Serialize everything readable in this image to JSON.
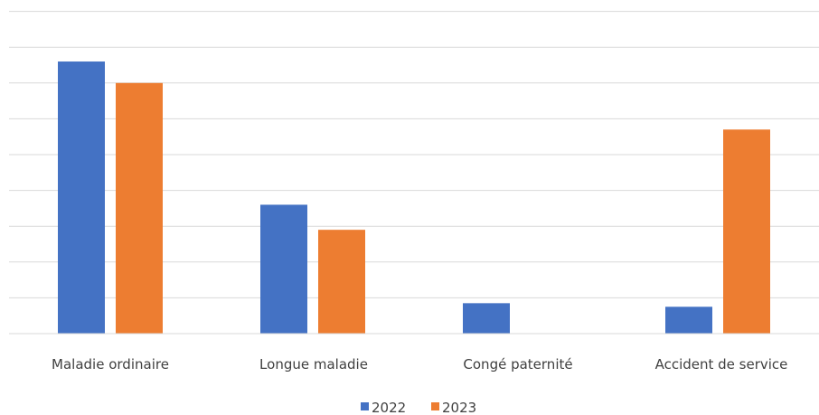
{
  "chart_data": {
    "type": "bar",
    "categories": [
      "Maladie ordinaire",
      "Longue maladie",
      "Congé paternité",
      "Accident de service"
    ],
    "series": [
      {
        "name": "2022",
        "values": [
          7.6,
          3.6,
          0.85,
          0.75
        ],
        "color": "#4472C4"
      },
      {
        "name": "2023",
        "values": [
          7.0,
          2.9,
          0,
          5.7
        ],
        "color": "#ED7D31"
      }
    ],
    "ylim": [
      0,
      9
    ],
    "grid": true,
    "legend_position": "bottom",
    "title": "",
    "xlabel": "",
    "ylabel": ""
  }
}
